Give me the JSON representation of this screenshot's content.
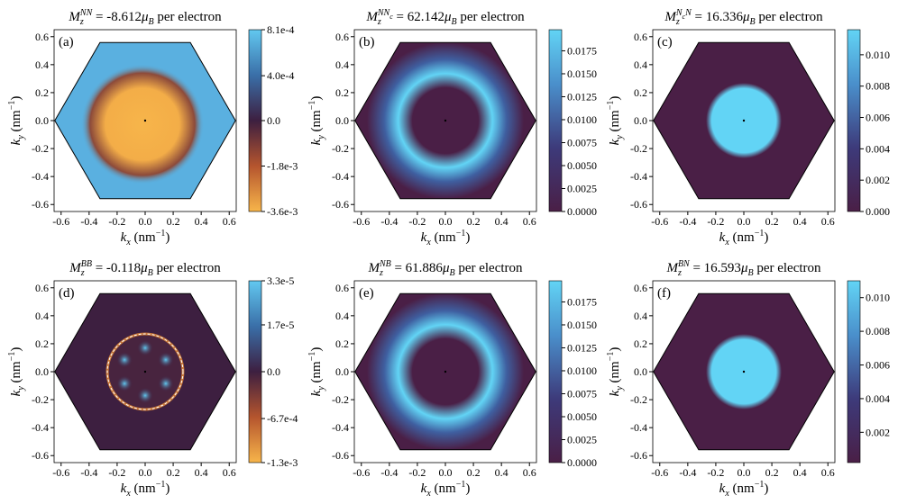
{
  "chart_data": [
    {
      "type": "heatmap",
      "panel": "(a)",
      "title": [
        {
          "text": "M",
          "italic": true
        },
        {
          "text": "z",
          "pos": "sub",
          "italic": true
        },
        {
          "text": "NN",
          "pos": "sup",
          "italic": true,
          "back": true
        },
        {
          "text": " = -8.612"
        },
        {
          "text": "μ",
          "italic": true
        },
        {
          "text": "B",
          "pos": "sub",
          "italic": true
        },
        {
          "text": " per electron"
        }
      ],
      "xlabel": [
        {
          "text": "k",
          "italic": true
        },
        {
          "text": "x",
          "pos": "sub",
          "italic": true
        },
        {
          "text": " (nm"
        },
        {
          "text": "−1",
          "pos": "sup"
        },
        {
          "text": ")"
        }
      ],
      "ylabel": [
        {
          "text": "k",
          "italic": true
        },
        {
          "text": "y",
          "pos": "sub",
          "italic": true
        },
        {
          "text": " (nm"
        },
        {
          "text": "−1",
          "pos": "sup"
        },
        {
          "text": ")"
        }
      ],
      "xlim": [
        -0.65,
        0.65
      ],
      "ylim": [
        -0.65,
        0.65
      ],
      "xticks": [
        -0.6,
        -0.4,
        -0.2,
        {
          "value": 0,
          "label": "0.0"
        },
        0.2,
        0.4,
        0.6
      ],
      "yticks": [
        -0.6,
        -0.4,
        -0.2,
        {
          "value": 0,
          "label": "0.0"
        },
        0.2,
        0.4,
        0.6
      ],
      "colormap": "diverging",
      "clim": [
        -0.0036,
        0.00081
      ],
      "ccenter": 0,
      "cticks": [
        {
          "value": -0.0036,
          "label": "-3.6e-3"
        },
        {
          "value": -0.0018,
          "label": "-1.8e-3"
        },
        {
          "value": 0,
          "label": "0.0"
        },
        {
          "value": 0.0004,
          "label": "4.0e-4"
        },
        {
          "value": 0.00081,
          "label": "8.1e-4"
        }
      ]
    },
    {
      "type": "heatmap",
      "panel": "(b)",
      "title": [
        {
          "text": "M",
          "italic": true
        },
        {
          "text": "z",
          "pos": "sub",
          "italic": true
        },
        {
          "text": "NN",
          "pos": "sup",
          "italic": true,
          "back": true
        },
        {
          "text": "c",
          "pos": "supsub",
          "italic": true
        },
        {
          "text": " = 62.142"
        },
        {
          "text": "μ",
          "italic": true
        },
        {
          "text": "B",
          "pos": "sub",
          "italic": true
        },
        {
          "text": " per electron"
        }
      ],
      "xlabel": [
        {
          "text": "k",
          "italic": true
        },
        {
          "text": "x",
          "pos": "sub",
          "italic": true
        },
        {
          "text": " (nm"
        },
        {
          "text": "−1",
          "pos": "sup"
        },
        {
          "text": ")"
        }
      ],
      "ylabel": [
        {
          "text": "k",
          "italic": true
        },
        {
          "text": "y",
          "pos": "sub",
          "italic": true
        },
        {
          "text": " (nm"
        },
        {
          "text": "−1",
          "pos": "sup"
        },
        {
          "text": ")"
        }
      ],
      "xlim": [
        -0.65,
        0.65
      ],
      "ylim": [
        -0.65,
        0.65
      ],
      "xticks": [
        -0.6,
        -0.4,
        -0.2,
        {
          "value": 0,
          "label": "0.0"
        },
        0.2,
        0.4,
        0.6
      ],
      "yticks": [
        -0.6,
        -0.4,
        -0.2,
        {
          "value": 0,
          "label": "0.0"
        },
        0.2,
        0.4,
        0.6
      ],
      "colormap": "sequential",
      "clim": [
        0,
        0.0198
      ],
      "cticks": [
        {
          "value": 0,
          "label": "0.0000"
        },
        {
          "value": 0.0025,
          "label": "0.0025"
        },
        {
          "value": 0.005,
          "label": "0.0050"
        },
        {
          "value": 0.0075,
          "label": "0.0075"
        },
        {
          "value": 0.01,
          "label": "0.0100"
        },
        {
          "value": 0.0125,
          "label": "0.0125"
        },
        {
          "value": 0.015,
          "label": "0.0150"
        },
        {
          "value": 0.0175,
          "label": "0.0175"
        }
      ]
    },
    {
      "type": "heatmap",
      "panel": "(c)",
      "title": [
        {
          "text": "M",
          "italic": true
        },
        {
          "text": "z",
          "pos": "sub",
          "italic": true
        },
        {
          "text": "N",
          "pos": "sup",
          "italic": true,
          "back": true
        },
        {
          "text": "c",
          "pos": "supsub",
          "italic": true
        },
        {
          "text": "N",
          "pos": "sup",
          "italic": true
        },
        {
          "text": " = 16.336"
        },
        {
          "text": "μ",
          "italic": true
        },
        {
          "text": "B",
          "pos": "sub",
          "italic": true
        },
        {
          "text": " per electron"
        }
      ],
      "xlabel": [
        {
          "text": "k",
          "italic": true
        },
        {
          "text": "x",
          "pos": "sub",
          "italic": true
        },
        {
          "text": " (nm"
        },
        {
          "text": "−1",
          "pos": "sup"
        },
        {
          "text": ")"
        }
      ],
      "ylabel": [
        {
          "text": "k",
          "italic": true
        },
        {
          "text": "y",
          "pos": "sub",
          "italic": true
        },
        {
          "text": " (nm"
        },
        {
          "text": "−1",
          "pos": "sup"
        },
        {
          "text": ")"
        }
      ],
      "xlim": [
        -0.65,
        0.65
      ],
      "ylim": [
        -0.65,
        0.65
      ],
      "xticks": [
        -0.6,
        -0.4,
        -0.2,
        {
          "value": 0,
          "label": "0.0"
        },
        0.2,
        0.4,
        0.6
      ],
      "yticks": [
        -0.6,
        -0.4,
        -0.2,
        {
          "value": 0,
          "label": "0.0"
        },
        0.2,
        0.4,
        0.6
      ],
      "colormap": "sequential",
      "clim": [
        0,
        0.0116
      ],
      "cticks": [
        {
          "value": 0,
          "label": "0.000"
        },
        {
          "value": 0.002,
          "label": "0.002"
        },
        {
          "value": 0.004,
          "label": "0.004"
        },
        {
          "value": 0.006,
          "label": "0.006"
        },
        {
          "value": 0.008,
          "label": "0.008"
        },
        {
          "value": 0.01,
          "label": "0.010"
        }
      ]
    },
    {
      "type": "heatmap",
      "panel": "(d)",
      "title": [
        {
          "text": "M",
          "italic": true
        },
        {
          "text": "z",
          "pos": "sub",
          "italic": true
        },
        {
          "text": "BB",
          "pos": "sup",
          "italic": true,
          "back": true
        },
        {
          "text": " = -0.118"
        },
        {
          "text": "μ",
          "italic": true
        },
        {
          "text": "B",
          "pos": "sub",
          "italic": true
        },
        {
          "text": " per electron"
        }
      ],
      "xlabel": [
        {
          "text": "k",
          "italic": true
        },
        {
          "text": "x",
          "pos": "sub",
          "italic": true
        },
        {
          "text": " (nm"
        },
        {
          "text": "−1",
          "pos": "sup"
        },
        {
          "text": ")"
        }
      ],
      "ylabel": [
        {
          "text": "k",
          "italic": true
        },
        {
          "text": "y",
          "pos": "sub",
          "italic": true
        },
        {
          "text": " (nm"
        },
        {
          "text": "−1",
          "pos": "sup"
        },
        {
          "text": ")"
        }
      ],
      "xlim": [
        -0.65,
        0.65
      ],
      "ylim": [
        -0.65,
        0.65
      ],
      "xticks": [
        -0.6,
        -0.4,
        -0.2,
        {
          "value": 0,
          "label": "0.0"
        },
        0.2,
        0.4,
        0.6
      ],
      "yticks": [
        -0.6,
        -0.4,
        -0.2,
        {
          "value": 0,
          "label": "0.0"
        },
        0.2,
        0.4,
        0.6
      ],
      "colormap": "diverging",
      "clim": [
        -0.0013,
        3.3e-05
      ],
      "ccenter": 0,
      "cticks": [
        {
          "value": -0.0013,
          "label": "-1.3e-3"
        },
        {
          "value": -0.00067,
          "label": "-6.7e-4"
        },
        {
          "value": 0,
          "label": "0.0"
        },
        {
          "value": 1.7e-05,
          "label": "1.7e-5"
        },
        {
          "value": 3.3e-05,
          "label": "3.3e-5"
        }
      ]
    },
    {
      "type": "heatmap",
      "panel": "(e)",
      "title": [
        {
          "text": "M",
          "italic": true
        },
        {
          "text": "z",
          "pos": "sub",
          "italic": true
        },
        {
          "text": "NB",
          "pos": "sup",
          "italic": true,
          "back": true
        },
        {
          "text": " = 61.886"
        },
        {
          "text": "μ",
          "italic": true
        },
        {
          "text": "B",
          "pos": "sub",
          "italic": true
        },
        {
          "text": " per electron"
        }
      ],
      "xlabel": [
        {
          "text": "k",
          "italic": true
        },
        {
          "text": "x",
          "pos": "sub",
          "italic": true
        },
        {
          "text": " (nm"
        },
        {
          "text": "−1",
          "pos": "sup"
        },
        {
          "text": ")"
        }
      ],
      "ylabel": [
        {
          "text": "k",
          "italic": true
        },
        {
          "text": "y",
          "pos": "sub",
          "italic": true
        },
        {
          "text": " (nm"
        },
        {
          "text": "−1",
          "pos": "sup"
        },
        {
          "text": ")"
        }
      ],
      "xlim": [
        -0.65,
        0.65
      ],
      "ylim": [
        -0.65,
        0.65
      ],
      "xticks": [
        -0.6,
        -0.4,
        -0.2,
        {
          "value": 0,
          "label": "0.0"
        },
        0.2,
        0.4,
        0.6
      ],
      "yticks": [
        -0.6,
        -0.4,
        -0.2,
        {
          "value": 0,
          "label": "0.0"
        },
        0.2,
        0.4,
        0.6
      ],
      "colormap": "sequential",
      "clim": [
        0,
        0.0198
      ],
      "cticks": [
        {
          "value": 0,
          "label": "0.0000"
        },
        {
          "value": 0.0025,
          "label": "0.0025"
        },
        {
          "value": 0.005,
          "label": "0.0050"
        },
        {
          "value": 0.0075,
          "label": "0.0075"
        },
        {
          "value": 0.01,
          "label": "0.0100"
        },
        {
          "value": 0.0125,
          "label": "0.0125"
        },
        {
          "value": 0.015,
          "label": "0.0150"
        },
        {
          "value": 0.0175,
          "label": "0.0175"
        }
      ]
    },
    {
      "type": "heatmap",
      "panel": "(f)",
      "title": [
        {
          "text": "M",
          "italic": true
        },
        {
          "text": "z",
          "pos": "sub",
          "italic": true
        },
        {
          "text": "BN",
          "pos": "sup",
          "italic": true,
          "back": true
        },
        {
          "text": " = 16.593"
        },
        {
          "text": "μ",
          "italic": true
        },
        {
          "text": "B",
          "pos": "sub",
          "italic": true
        },
        {
          "text": " per electron"
        }
      ],
      "xlabel": [
        {
          "text": "k",
          "italic": true
        },
        {
          "text": "x",
          "pos": "sub",
          "italic": true
        },
        {
          "text": " (nm"
        },
        {
          "text": "−1",
          "pos": "sup"
        },
        {
          "text": ")"
        }
      ],
      "ylabel": [
        {
          "text": "k",
          "italic": true
        },
        {
          "text": "y",
          "pos": "sub",
          "italic": true
        },
        {
          "text": " (nm"
        },
        {
          "text": "−1",
          "pos": "sup"
        },
        {
          "text": ")"
        }
      ],
      "xlim": [
        -0.65,
        0.65
      ],
      "ylim": [
        -0.65,
        0.65
      ],
      "xticks": [
        -0.6,
        -0.4,
        -0.2,
        {
          "value": 0,
          "label": "0.0"
        },
        0.2,
        0.4,
        0.6
      ],
      "yticks": [
        -0.6,
        -0.4,
        -0.2,
        {
          "value": 0,
          "label": "0.0"
        },
        0.2,
        0.4,
        0.6
      ],
      "colormap": "sequential",
      "clim": [
        0.0002,
        0.011
      ],
      "cticks": [
        {
          "value": 0.002,
          "label": "0.002"
        },
        {
          "value": 0.004,
          "label": "0.004"
        },
        {
          "value": 0.006,
          "label": "0.006"
        },
        {
          "value": 0.008,
          "label": "0.008"
        },
        {
          "value": 0.01,
          "label": "0.010"
        }
      ]
    }
  ]
}
